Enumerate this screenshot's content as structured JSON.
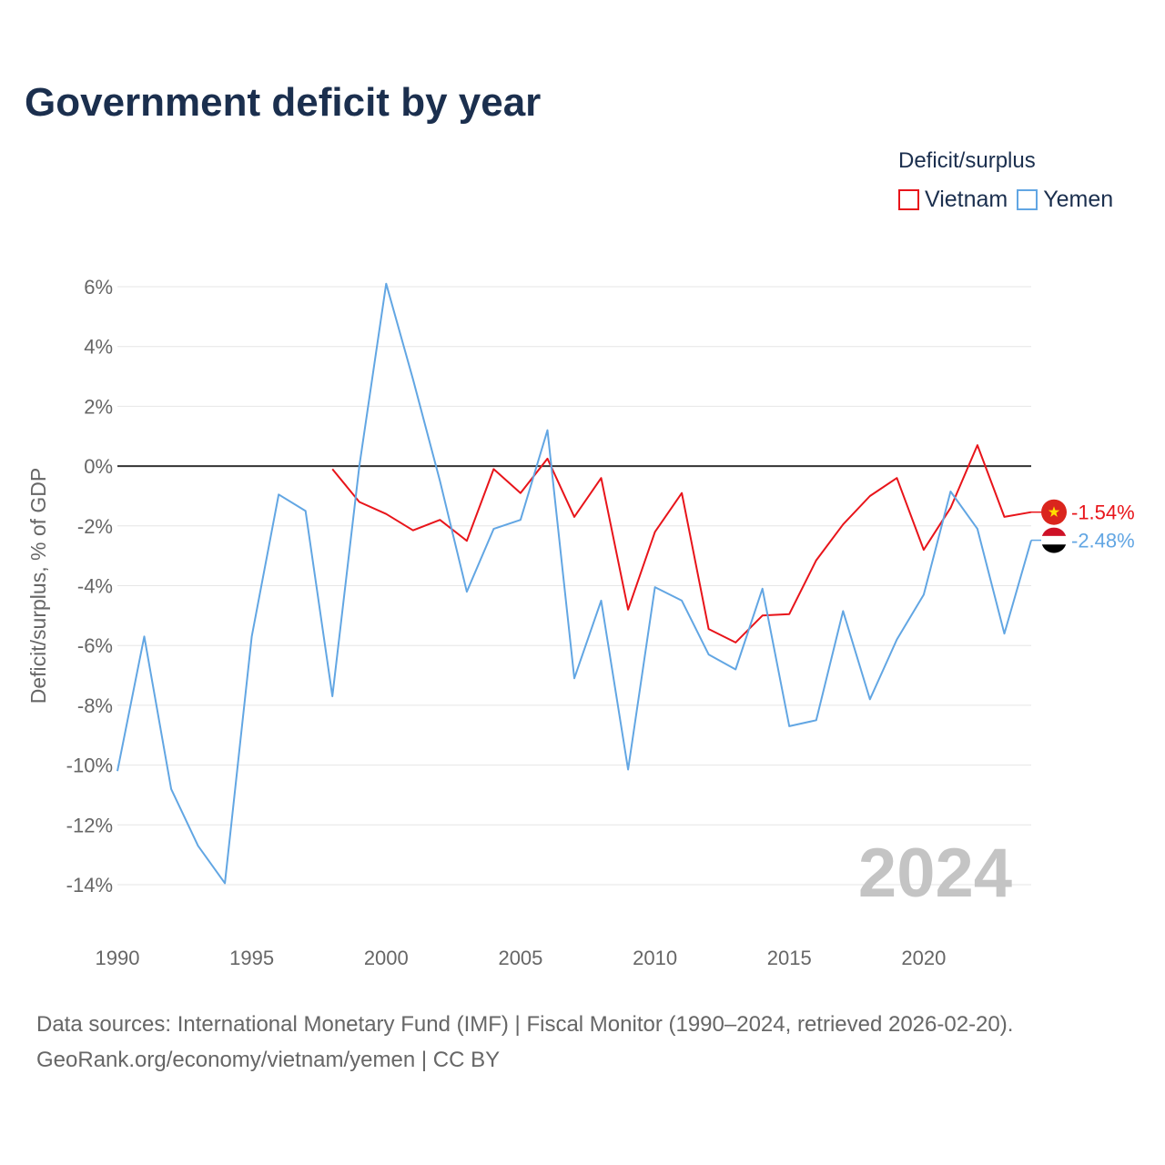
{
  "title": "Government deficit by year",
  "legend": {
    "title": "Deficit/surplus",
    "items": [
      {
        "label": "Vietnam",
        "color": "#e8141a"
      },
      {
        "label": "Yemen",
        "color": "#62a6e3"
      }
    ]
  },
  "source": {
    "line1": "Data sources: International Monetary Fund (IMF) | Fiscal Monitor (1990–2024, retrieved 2026-02-20).",
    "line2": "GeoRank.org/economy/vietnam/yemen | CC BY"
  },
  "chart_data": {
    "type": "line",
    "title": "Government deficit by year",
    "ylabel": "Deficit/surplus, % of GDP",
    "xlabel": "",
    "xlim": [
      1990,
      2024
    ],
    "ylim": [
      -14,
      6
    ],
    "x_ticks": [
      1990,
      1995,
      2000,
      2005,
      2010,
      2015,
      2020
    ],
    "x_tick_labels": [
      "1990",
      "1995",
      "2000",
      "2005",
      "2010",
      "2015",
      "2020"
    ],
    "y_ticks": [
      6,
      4,
      2,
      0,
      -2,
      -4,
      -6,
      -8,
      -10,
      -12,
      -14
    ],
    "y_tick_labels": [
      "6%",
      "4%",
      "2%",
      "0%",
      "-2%",
      "-4%",
      "-6%",
      "-8%",
      "-10%",
      "-12%",
      "-14%"
    ],
    "watermark_year": "2024",
    "series": [
      {
        "name": "Vietnam",
        "color": "#e8141a",
        "end_label": "-1.54%",
        "flag": "vietnam-flag-icon",
        "x": [
          1998,
          1999,
          2000,
          2001,
          2002,
          2003,
          2004,
          2005,
          2006,
          2007,
          2008,
          2009,
          2010,
          2011,
          2012,
          2013,
          2014,
          2015,
          2016,
          2017,
          2018,
          2019,
          2020,
          2021,
          2022,
          2023,
          2024
        ],
        "values": [
          -0.1,
          -1.2,
          -1.6,
          -2.15,
          -1.8,
          -2.5,
          -0.1,
          -0.9,
          0.25,
          -1.7,
          -0.4,
          -4.8,
          -2.2,
          -0.9,
          -5.45,
          -5.9,
          -5.0,
          -4.95,
          -3.15,
          -1.95,
          -1.0,
          -0.4,
          -2.8,
          -1.4,
          0.7,
          -1.7,
          -1.54
        ]
      },
      {
        "name": "Yemen",
        "color": "#62a6e3",
        "end_label": "-2.48%",
        "flag": "yemen-flag-icon",
        "x": [
          1990,
          1991,
          1992,
          1993,
          1994,
          1995,
          1996,
          1997,
          1998,
          1999,
          2000,
          2001,
          2002,
          2003,
          2004,
          2005,
          2006,
          2007,
          2008,
          2009,
          2010,
          2011,
          2012,
          2013,
          2014,
          2015,
          2016,
          2017,
          2018,
          2019,
          2020,
          2021,
          2022,
          2023,
          2024
        ],
        "values": [
          -10.2,
          -5.7,
          -10.8,
          -12.7,
          -13.95,
          -5.7,
          -0.95,
          -1.5,
          -7.7,
          0.0,
          6.1,
          2.9,
          -0.5,
          -4.2,
          -2.1,
          -1.8,
          1.2,
          -7.1,
          -4.5,
          -10.15,
          -4.05,
          -4.5,
          -6.3,
          -6.8,
          -4.1,
          -8.7,
          -8.5,
          -4.85,
          -7.8,
          -5.8,
          -4.3,
          -0.85,
          -2.1,
          -5.6,
          -2.48
        ]
      }
    ]
  }
}
